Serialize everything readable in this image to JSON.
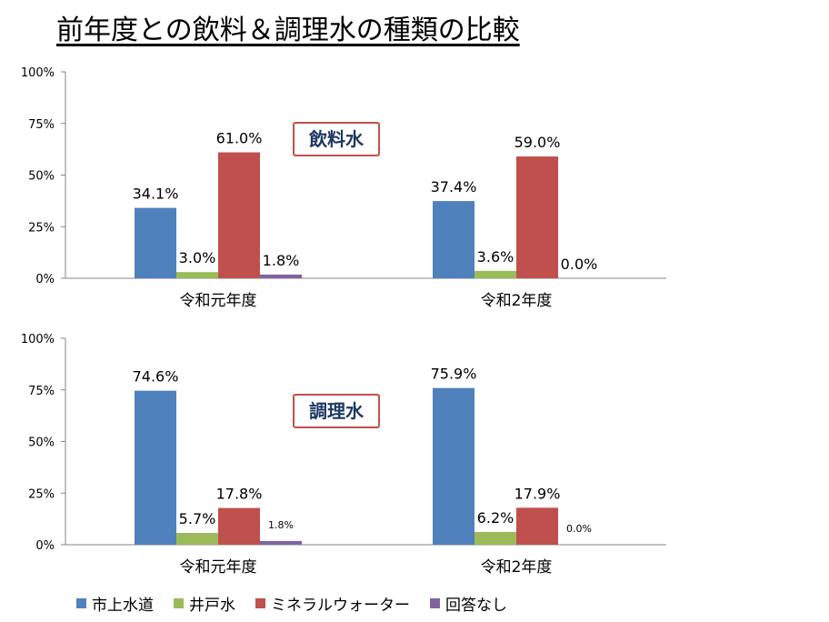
{
  "title": "前年度との飲料＆調理水の種類の比較",
  "colors": [
    "#4f81bd",
    "#9bbb59",
    "#c0504d",
    "#8064a2"
  ],
  "chart_data": [
    {
      "type": "bar",
      "tag": "飲料水",
      "categories": [
        "令和元年度",
        "令和2年度"
      ],
      "yticks": [
        "0%",
        "25%",
        "50%",
        "75%",
        "100%"
      ],
      "ylim": [
        0,
        100
      ],
      "series": [
        {
          "name": "市上水道",
          "values": [
            34.1,
            37.4
          ],
          "labels": [
            "34.1%",
            "37.4%"
          ]
        },
        {
          "name": "井戸水",
          "values": [
            3.0,
            3.6
          ],
          "labels": [
            "3.0%",
            "3.6%"
          ]
        },
        {
          "name": "ミネラルウォーター",
          "values": [
            61.0,
            59.0
          ],
          "labels": [
            "61.0%",
            "59.0%"
          ]
        },
        {
          "name": "回答なし",
          "values": [
            1.8,
            0.0
          ],
          "labels": [
            "1.8%",
            "0.0%"
          ]
        }
      ]
    },
    {
      "type": "bar",
      "tag": "調理水",
      "categories": [
        "令和元年度",
        "令和2年度"
      ],
      "yticks": [
        "0%",
        "25%",
        "50%",
        "75%",
        "100%"
      ],
      "ylim": [
        0,
        100
      ],
      "series": [
        {
          "name": "市上水道",
          "values": [
            74.6,
            75.9
          ],
          "labels": [
            "74.6%",
            "75.9%"
          ]
        },
        {
          "name": "井戸水",
          "values": [
            5.7,
            6.2
          ],
          "labels": [
            "5.7%",
            "6.2%"
          ]
        },
        {
          "name": "ミネラルウォーター",
          "values": [
            17.8,
            17.9
          ],
          "labels": [
            "17.8%",
            "17.9%"
          ]
        },
        {
          "name": "回答なし",
          "values": [
            1.8,
            0.0
          ],
          "labels": [
            "1.8%",
            "0.0%"
          ]
        }
      ]
    }
  ],
  "legend": [
    "市上水道",
    "井戸水",
    "ミネラルウォーター",
    "回答なし"
  ]
}
